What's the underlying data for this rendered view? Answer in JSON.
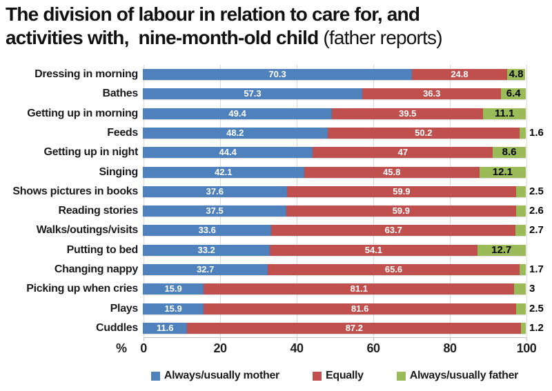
{
  "title": {
    "line1": "The division of labour in relation to care for, and",
    "line2_bold": "activities with,  nine-month-old child ",
    "line2_normal": "(father reports)"
  },
  "chart_data": {
    "type": "bar",
    "orientation": "horizontal",
    "stacked": true,
    "title": "The division of labour in relation to care for, and activities with, nine-month-old child (father reports)",
    "xlabel": "%",
    "xlim": [
      0,
      100
    ],
    "xticks": [
      0,
      20,
      40,
      60,
      80,
      100
    ],
    "grid": "vertical",
    "legend_position": "bottom",
    "colors": {
      "mother": "#4F81BD",
      "equally": "#C0504D",
      "father": "#9BBB59"
    },
    "categories": [
      "Dressing in morning",
      "Bathes",
      "Getting up in morning",
      "Feeds",
      "Getting up in night",
      "Singing",
      "Shows pictures in books",
      "Reading stories",
      "Walks/outings/visits",
      "Putting to bed",
      "Changing nappy",
      "Picking up when cries",
      "Plays",
      "Cuddles"
    ],
    "series": [
      {
        "name": "Always/usually mother",
        "color": "#4F81BD",
        "values": [
          70.3,
          57.3,
          49.4,
          48.2,
          44.4,
          42.1,
          37.6,
          37.5,
          33.6,
          33.2,
          32.7,
          15.9,
          15.9,
          11.6
        ]
      },
      {
        "name": "Equally",
        "color": "#C0504D",
        "values": [
          24.8,
          36.3,
          39.5,
          50.2,
          47,
          45.8,
          59.9,
          59.9,
          63.7,
          54.1,
          65.6,
          81.1,
          81.6,
          87.2
        ]
      },
      {
        "name": "Always/usually father",
        "color": "#9BBB59",
        "values": [
          4.8,
          6.4,
          11.1,
          1.6,
          8.6,
          12.1,
          2.5,
          2.6,
          2.7,
          12.7,
          1.7,
          3,
          2.5,
          1.2
        ]
      }
    ]
  }
}
